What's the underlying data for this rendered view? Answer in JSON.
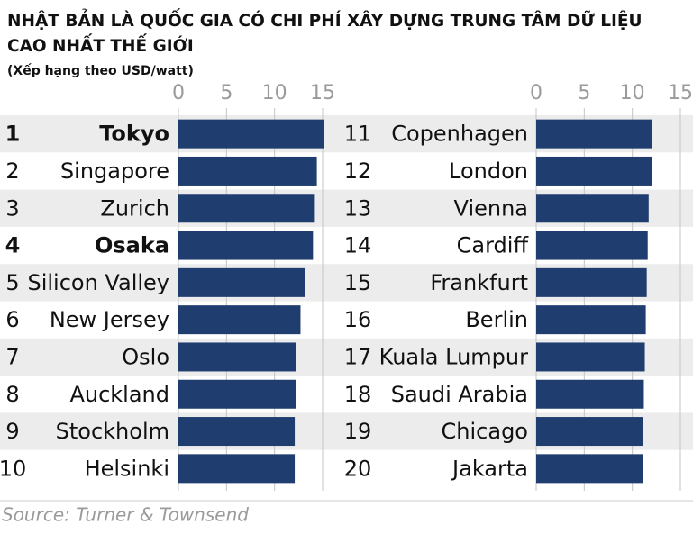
{
  "title": "NHẬT BẢN LÀ QUỐC GIA CÓ CHI PHÍ XÂY DỰNG TRUNG TÂM DỮ LIỆU CAO NHẤT THẾ GIỚI",
  "subtitle": "(Xếp hạng theo USD/watt)",
  "source": "Source: Turner & Townsend",
  "chart_data": [
    {
      "type": "bar",
      "orientation": "horizontal",
      "color": "#1f3d6f",
      "ranks": [
        1,
        2,
        3,
        4,
        5,
        6,
        7,
        8,
        9,
        10
      ],
      "categories": [
        "Tokyo",
        "Singapore",
        "Zurich",
        "Osaka",
        "Silicon Valley",
        "New Jersey",
        "Oslo",
        "Auckland",
        "Stockholm",
        "Helsinki"
      ],
      "bold": [
        true,
        false,
        false,
        true,
        false,
        false,
        false,
        false,
        false,
        false
      ],
      "values": [
        15.1,
        14.4,
        14.1,
        14.0,
        13.2,
        12.7,
        12.2,
        12.2,
        12.1,
        12.1
      ],
      "xlim": [
        0,
        15
      ],
      "xticks": [
        0,
        5,
        10,
        15
      ],
      "grid": true
    },
    {
      "type": "bar",
      "orientation": "horizontal",
      "color": "#1f3d6f",
      "ranks": [
        11,
        12,
        13,
        14,
        15,
        16,
        17,
        18,
        19,
        20
      ],
      "categories": [
        "Copenhagen",
        "London",
        "Vienna",
        "Cardiff",
        "Frankfurt",
        "Berlin",
        "Kuala Lumpur",
        "Saudi Arabia",
        "Chicago",
        "Jakarta"
      ],
      "bold": [
        false,
        false,
        false,
        false,
        false,
        false,
        false,
        false,
        false,
        false
      ],
      "values": [
        12.0,
        12.0,
        11.7,
        11.6,
        11.5,
        11.4,
        11.3,
        11.2,
        11.1,
        11.1
      ],
      "xlim": [
        0,
        15
      ],
      "xticks": [
        0,
        5,
        10,
        15
      ],
      "grid": true
    }
  ]
}
